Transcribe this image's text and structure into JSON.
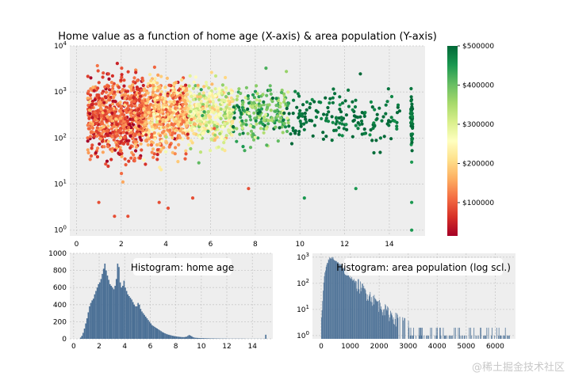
{
  "watermark": "@稀土掘金技术社区",
  "chart_data": [
    {
      "type": "scatter",
      "title": "Home value as a function of home age (X-axis) & area population (Y-axis)",
      "xlim": [
        -0.3,
        15.6
      ],
      "ylim": [
        0.75,
        10000
      ],
      "y_scale": "log",
      "x_ticks": [
        0,
        2,
        4,
        6,
        8,
        10,
        12,
        14
      ],
      "y_ticks": [
        {
          "value": 1,
          "base": "10",
          "exp": "0"
        },
        {
          "value": 10,
          "base": "10",
          "exp": "1"
        },
        {
          "value": 100,
          "base": "10",
          "exp": "2"
        },
        {
          "value": 1000,
          "base": "10",
          "exp": "3"
        },
        {
          "value": 10000,
          "base": "10",
          "exp": "4"
        }
      ],
      "grid": true,
      "colormap": "RdYlGn",
      "colormap_stops": [
        "#a50026",
        "#d73027",
        "#f46d43",
        "#fdae61",
        "#fee08b",
        "#ffffbf",
        "#d9ef8b",
        "#a6d96a",
        "#66bd63",
        "#1a9850",
        "#006837"
      ],
      "colorbar": {
        "range": [
          15000,
          500000
        ],
        "ticks": [
          {
            "value": 100000,
            "label": "$100000"
          },
          {
            "value": 200000,
            "label": "$200000"
          },
          {
            "value": 300000,
            "label": "$300000"
          },
          {
            "value": 400000,
            "label": "$400000"
          },
          {
            "value": 500000,
            "label": "$500000"
          }
        ]
      },
      "clusters": [
        {
          "x_min": 0.5,
          "x_max": 3.0,
          "y_median": 280,
          "y_spread": 0.42,
          "value_median": 100000,
          "value_spread": 45000,
          "count": 700
        },
        {
          "x_min": 3.0,
          "x_max": 5.0,
          "y_median": 320,
          "y_spread": 0.38,
          "value_median": 160000,
          "value_spread": 55000,
          "count": 600
        },
        {
          "x_min": 5.0,
          "x_max": 7.0,
          "y_median": 350,
          "y_spread": 0.32,
          "value_median": 280000,
          "value_spread": 60000,
          "count": 380
        },
        {
          "x_min": 7.0,
          "x_max": 9.5,
          "y_median": 330,
          "y_spread": 0.28,
          "value_median": 400000,
          "value_spread": 60000,
          "count": 230
        },
        {
          "x_min": 9.5,
          "x_max": 14.5,
          "y_median": 280,
          "y_spread": 0.25,
          "value_median": 490000,
          "value_spread": 15000,
          "count": 170
        },
        {
          "x_min": 14.95,
          "x_max": 15.05,
          "y_median": 250,
          "y_spread": 0.28,
          "value_median": 490000,
          "value_spread": 20000,
          "count": 45
        }
      ],
      "outliers": [
        {
          "x": 1.0,
          "y": 4
        },
        {
          "x": 1.7,
          "y": 2
        },
        {
          "x": 2.3,
          "y": 2
        },
        {
          "x": 3.7,
          "y": 4
        },
        {
          "x": 4.1,
          "y": 3
        },
        {
          "x": 5.2,
          "y": 5
        },
        {
          "x": 7.7,
          "y": 8
        },
        {
          "x": 10.2,
          "y": 5
        },
        {
          "x": 15.0,
          "y": 1
        },
        {
          "x": 15.0,
          "y": 4
        },
        {
          "x": 15.0,
          "y": 30
        },
        {
          "x": 12.5,
          "y": 8
        }
      ]
    },
    {
      "type": "bar",
      "title": "Histogram: home age",
      "bin_width": 0.1,
      "x_start": 0.5,
      "xlim": [
        -0.3,
        15.6
      ],
      "ylim": [
        0,
        1000
      ],
      "x_ticks": [
        0,
        2,
        4,
        6,
        8,
        10,
        12,
        14
      ],
      "y_ticks": [
        0,
        200,
        400,
        600,
        800,
        1000
      ],
      "grid": true,
      "bar_color": "#4a6f95",
      "values": [
        15,
        35,
        70,
        120,
        180,
        240,
        310,
        380,
        420,
        450,
        470,
        520,
        560,
        600,
        640,
        660,
        700,
        760,
        820,
        880,
        800,
        740,
        690,
        640,
        620,
        600,
        580,
        620,
        700,
        880,
        840,
        660,
        600,
        620,
        680,
        600,
        560,
        520,
        500,
        480,
        460,
        430,
        400,
        380,
        380,
        420,
        400,
        350,
        320,
        300,
        280,
        260,
        240,
        220,
        200,
        180,
        160,
        150,
        140,
        130,
        120,
        110,
        100,
        90,
        80,
        72,
        65,
        58,
        52,
        48,
        44,
        40,
        36,
        33,
        30,
        28,
        26,
        24,
        22,
        21,
        20,
        20,
        22,
        25,
        35,
        45,
        38,
        30,
        20,
        15,
        12,
        11,
        10,
        9,
        9,
        8,
        8,
        7,
        7,
        6,
        6,
        5,
        5,
        5,
        5,
        4,
        4,
        4,
        4,
        3,
        3,
        3,
        3,
        3,
        3,
        2,
        2,
        2,
        2,
        2,
        2,
        2,
        2,
        2,
        2,
        2,
        2,
        2,
        2,
        1,
        1,
        1,
        1,
        1,
        1,
        1,
        1,
        1,
        1,
        1,
        1,
        1,
        1,
        1,
        1,
        48
      ]
    },
    {
      "type": "bar",
      "title": "Histogram: area population (log scl.)",
      "xlim": [
        -300,
        6700
      ],
      "y_scale": "log",
      "ylim": [
        0.75,
        1400
      ],
      "x_ticks": [
        0,
        1000,
        2000,
        3000,
        4000,
        5000,
        6000
      ],
      "y_ticks": [
        {
          "value": 1,
          "base": "10",
          "exp": "0"
        },
        {
          "value": 10,
          "base": "10",
          "exp": "1"
        },
        {
          "value": 100,
          "base": "10",
          "exp": "2"
        },
        {
          "value": 1000,
          "base": "10",
          "exp": "3"
        }
      ],
      "grid": true,
      "bar_color": "#4a6f95",
      "bin_width": 20,
      "x_start": 0,
      "envelope": [
        {
          "x": 0,
          "y": 3
        },
        {
          "x": 100,
          "y": 150
        },
        {
          "x": 200,
          "y": 600
        },
        {
          "x": 300,
          "y": 900
        },
        {
          "x": 400,
          "y": 950
        },
        {
          "x": 600,
          "y": 600
        },
        {
          "x": 800,
          "y": 350
        },
        {
          "x": 1000,
          "y": 180
        },
        {
          "x": 1500,
          "y": 50
        },
        {
          "x": 2000,
          "y": 15
        },
        {
          "x": 2500,
          "y": 5
        },
        {
          "x": 3000,
          "y": 2.5
        },
        {
          "x": 4000,
          "y": 1.5
        },
        {
          "x": 5000,
          "y": 1
        },
        {
          "x": 6500,
          "y": 1
        }
      ]
    }
  ]
}
